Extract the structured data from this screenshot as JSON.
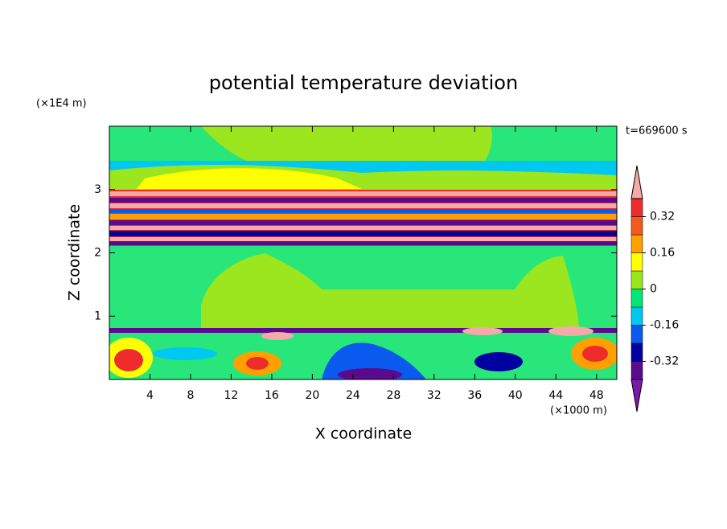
{
  "chart_data": {
    "type": "contour",
    "title": "potential temperature deviation",
    "xlabel": "X coordinate",
    "ylabel": "Z coordinate",
    "x_unit": "(×1000 m)",
    "y_unit": "(×1E4 m)",
    "annotation": "t=669600 s",
    "xlim": [
      0,
      50
    ],
    "xticks": [
      4,
      8,
      12,
      16,
      20,
      24,
      28,
      32,
      36,
      40,
      44,
      48
    ],
    "ylim": [
      0,
      4
    ],
    "yticks": [
      1,
      2,
      3
    ],
    "colorbar": {
      "levels": [
        -0.4,
        -0.32,
        -0.24,
        -0.16,
        -0.08,
        0,
        0.08,
        0.16,
        0.24,
        0.32,
        0.4
      ],
      "colors": [
        "#7a1aaa",
        "#5a0a8c",
        "#0000a0",
        "#0a5af0",
        "#00c8f0",
        "#00e678",
        "#9be61e",
        "#ffff00",
        "#ffa000",
        "#f25a1e",
        "#ee2c2c",
        "#f5a9a9"
      ],
      "ticks": [
        -0.32,
        -0.16,
        0,
        0.16,
        0.32
      ]
    }
  }
}
